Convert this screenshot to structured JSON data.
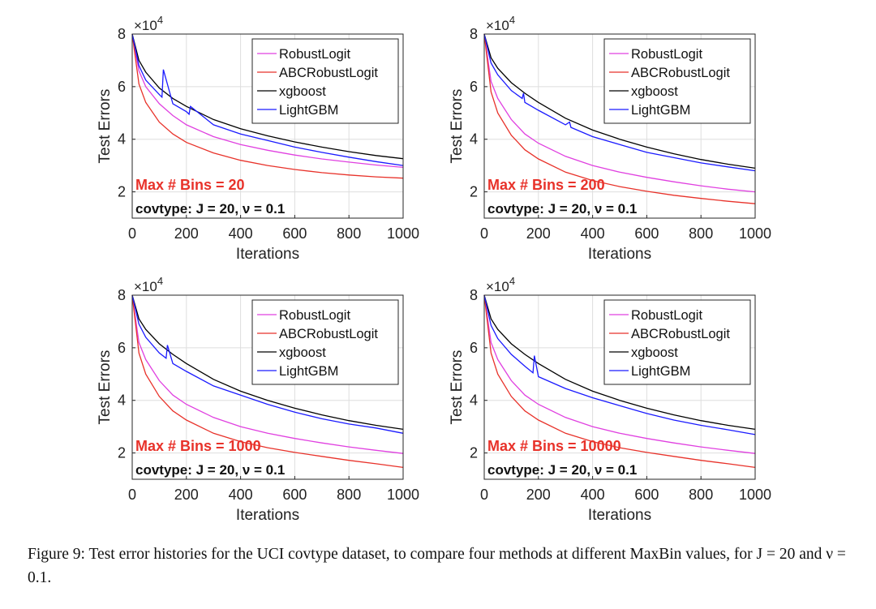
{
  "caption": {
    "label": "Figure 9:",
    "text": "Test error histories for the UCI covtype dataset, to compare four methods at different MaxBin values, for J = 20 and ν = 0.1."
  },
  "chart_data": [
    {
      "type": "line",
      "xlabel": "Iterations",
      "ylabel": "Test Errors",
      "y_exponent_label": "×10",
      "y_exponent": "4",
      "xlim": [
        0,
        1000
      ],
      "ylim": [
        10000,
        80000
      ],
      "x_ticks": [
        "0",
        "200",
        "400",
        "600",
        "800",
        "1000"
      ],
      "y_ticks": [
        "2",
        "4",
        "6",
        "8"
      ],
      "grid": true,
      "legend_placement": "top-right",
      "annotation_bins": "Max # Bins =  20",
      "annotation_info": "covtype: J = 20, ν = 0.1",
      "series": [
        {
          "name": "RobustLogit",
          "color": "#e040e0",
          "x": [
            0,
            25,
            50,
            100,
            150,
            200,
            300,
            400,
            500,
            600,
            700,
            800,
            900,
            1000
          ],
          "y": [
            80000,
            66000,
            60000,
            53500,
            49000,
            45500,
            41000,
            38000,
            35800,
            34000,
            32500,
            31300,
            30200,
            29300
          ]
        },
        {
          "name": "ABCRobustLogit",
          "color": "#e8322a",
          "x": [
            0,
            25,
            50,
            100,
            150,
            200,
            300,
            400,
            500,
            600,
            700,
            800,
            900,
            1000
          ],
          "y": [
            80000,
            61000,
            54000,
            46500,
            42000,
            38800,
            34800,
            32000,
            30000,
            28500,
            27300,
            26400,
            25700,
            25200
          ]
        },
        {
          "name": "xgboost",
          "color": "#000000",
          "x": [
            0,
            25,
            50,
            100,
            150,
            200,
            300,
            400,
            500,
            600,
            700,
            800,
            900,
            1000
          ],
          "y": [
            80000,
            70000,
            65500,
            59500,
            55500,
            52500,
            47500,
            44000,
            41300,
            39000,
            37000,
            35300,
            33800,
            32600
          ]
        },
        {
          "name": "LightGBM",
          "color": "#1a1aff",
          "x": [
            0,
            25,
            50,
            100,
            110,
            115,
            150,
            200,
            210,
            215,
            300,
            400,
            500,
            600,
            700,
            800,
            900,
            1000
          ],
          "y": [
            80000,
            68000,
            62500,
            57000,
            56000,
            66500,
            53500,
            50500,
            49500,
            52500,
            45500,
            42000,
            39500,
            37000,
            35000,
            33200,
            31500,
            30000
          ]
        }
      ]
    },
    {
      "type": "line",
      "xlabel": "Iterations",
      "ylabel": "Test Errors",
      "y_exponent_label": "×10",
      "y_exponent": "4",
      "xlim": [
        0,
        1000
      ],
      "ylim": [
        10000,
        80000
      ],
      "x_ticks": [
        "0",
        "200",
        "400",
        "600",
        "800",
        "1000"
      ],
      "y_ticks": [
        "2",
        "4",
        "6",
        "8"
      ],
      "grid": true,
      "legend_placement": "top-right",
      "annotation_bins": "Max # Bins =  200",
      "annotation_info": "covtype: J = 20, ν = 0.1",
      "series": [
        {
          "name": "RobustLogit",
          "color": "#e040e0",
          "x": [
            0,
            25,
            50,
            100,
            150,
            200,
            300,
            400,
            500,
            600,
            700,
            800,
            900,
            1000
          ],
          "y": [
            80000,
            62000,
            55500,
            47500,
            42000,
            38500,
            33500,
            30000,
            27500,
            25500,
            23800,
            22300,
            21000,
            20000
          ]
        },
        {
          "name": "ABCRobustLogit",
          "color": "#e8322a",
          "x": [
            0,
            25,
            50,
            100,
            150,
            200,
            300,
            400,
            500,
            600,
            700,
            800,
            900,
            1000
          ],
          "y": [
            80000,
            58000,
            50000,
            41500,
            36000,
            32500,
            27500,
            24300,
            22000,
            20200,
            18700,
            17500,
            16400,
            15500
          ]
        },
        {
          "name": "xgboost",
          "color": "#000000",
          "x": [
            0,
            25,
            50,
            100,
            150,
            200,
            300,
            400,
            500,
            600,
            700,
            800,
            900,
            1000
          ],
          "y": [
            80000,
            71000,
            67000,
            61500,
            57500,
            54000,
            48000,
            43500,
            40000,
            37000,
            34500,
            32300,
            30500,
            29000
          ]
        },
        {
          "name": "LightGBM",
          "color": "#1a1aff",
          "x": [
            0,
            25,
            50,
            100,
            140,
            145,
            150,
            200,
            300,
            315,
            320,
            400,
            500,
            600,
            700,
            800,
            900,
            1000
          ],
          "y": [
            80000,
            69000,
            64500,
            58500,
            55500,
            57500,
            54000,
            51000,
            45500,
            46500,
            44500,
            41000,
            38000,
            35000,
            33000,
            31000,
            29500,
            28000
          ]
        }
      ]
    },
    {
      "type": "line",
      "xlabel": "Iterations",
      "ylabel": "Test Errors",
      "y_exponent_label": "×10",
      "y_exponent": "4",
      "xlim": [
        0,
        1000
      ],
      "ylim": [
        10000,
        80000
      ],
      "x_ticks": [
        "0",
        "200",
        "400",
        "600",
        "800",
        "1000"
      ],
      "y_ticks": [
        "2",
        "4",
        "6",
        "8"
      ],
      "grid": true,
      "legend_placement": "top-right",
      "annotation_bins": "Max # Bins =  1000",
      "annotation_info": "covtype: J = 20, ν = 0.1",
      "series": [
        {
          "name": "RobustLogit",
          "color": "#e040e0",
          "x": [
            0,
            25,
            50,
            100,
            150,
            200,
            300,
            400,
            500,
            600,
            700,
            800,
            900,
            1000
          ],
          "y": [
            80000,
            62000,
            55500,
            47500,
            42000,
            38500,
            33500,
            30000,
            27500,
            25500,
            23800,
            22300,
            21000,
            19800
          ]
        },
        {
          "name": "ABCRobustLogit",
          "color": "#e8322a",
          "x": [
            0,
            25,
            50,
            100,
            150,
            200,
            300,
            400,
            500,
            600,
            700,
            800,
            900,
            1000
          ],
          "y": [
            80000,
            58000,
            50000,
            41500,
            36000,
            32500,
            27500,
            24300,
            22000,
            20200,
            18700,
            17200,
            15900,
            14500
          ]
        },
        {
          "name": "xgboost",
          "color": "#000000",
          "x": [
            0,
            25,
            50,
            100,
            150,
            200,
            300,
            400,
            500,
            600,
            700,
            800,
            900,
            1000
          ],
          "y": [
            80000,
            71000,
            67000,
            61500,
            57500,
            54000,
            48000,
            43500,
            40000,
            37000,
            34500,
            32300,
            30500,
            29000
          ]
        },
        {
          "name": "LightGBM",
          "color": "#1a1aff",
          "x": [
            0,
            25,
            50,
            100,
            125,
            130,
            150,
            200,
            300,
            400,
            500,
            600,
            700,
            800,
            900,
            1000
          ],
          "y": [
            80000,
            69000,
            64000,
            58000,
            56000,
            61000,
            54000,
            51000,
            45500,
            42000,
            38500,
            35500,
            33000,
            31000,
            29500,
            27500
          ]
        }
      ]
    },
    {
      "type": "line",
      "xlabel": "Iterations",
      "ylabel": "Test Errors",
      "y_exponent_label": "×10",
      "y_exponent": "4",
      "xlim": [
        0,
        1000
      ],
      "ylim": [
        10000,
        80000
      ],
      "x_ticks": [
        "0",
        "200",
        "400",
        "600",
        "800",
        "1000"
      ],
      "y_ticks": [
        "2",
        "4",
        "6",
        "8"
      ],
      "grid": true,
      "legend_placement": "top-right",
      "annotation_bins": "Max # Bins =  10000",
      "annotation_info": "covtype: J = 20, ν = 0.1",
      "series": [
        {
          "name": "RobustLogit",
          "color": "#e040e0",
          "x": [
            0,
            25,
            50,
            100,
            150,
            200,
            300,
            400,
            500,
            600,
            700,
            800,
            900,
            1000
          ],
          "y": [
            80000,
            62000,
            55500,
            47500,
            42000,
            38500,
            33500,
            30000,
            27500,
            25500,
            23800,
            22300,
            21000,
            19800
          ]
        },
        {
          "name": "ABCRobustLogit",
          "color": "#e8322a",
          "x": [
            0,
            25,
            50,
            100,
            150,
            200,
            300,
            400,
            500,
            600,
            700,
            800,
            900,
            1000
          ],
          "y": [
            80000,
            58000,
            50000,
            41500,
            36000,
            32500,
            27500,
            24300,
            22000,
            20200,
            18700,
            17200,
            15900,
            14500
          ]
        },
        {
          "name": "xgboost",
          "color": "#000000",
          "x": [
            0,
            25,
            50,
            100,
            150,
            200,
            300,
            400,
            500,
            600,
            700,
            800,
            900,
            1000
          ],
          "y": [
            80000,
            71000,
            67000,
            61500,
            57500,
            54000,
            48000,
            43500,
            40000,
            37000,
            34500,
            32300,
            30500,
            29000
          ]
        },
        {
          "name": "LightGBM",
          "color": "#1a1aff",
          "x": [
            0,
            25,
            50,
            100,
            150,
            180,
            185,
            200,
            300,
            400,
            500,
            600,
            700,
            800,
            900,
            1000
          ],
          "y": [
            80000,
            68500,
            63500,
            57500,
            53000,
            50500,
            57000,
            49000,
            44500,
            41000,
            38000,
            35000,
            32500,
            30500,
            28800,
            27000
          ]
        }
      ]
    }
  ]
}
